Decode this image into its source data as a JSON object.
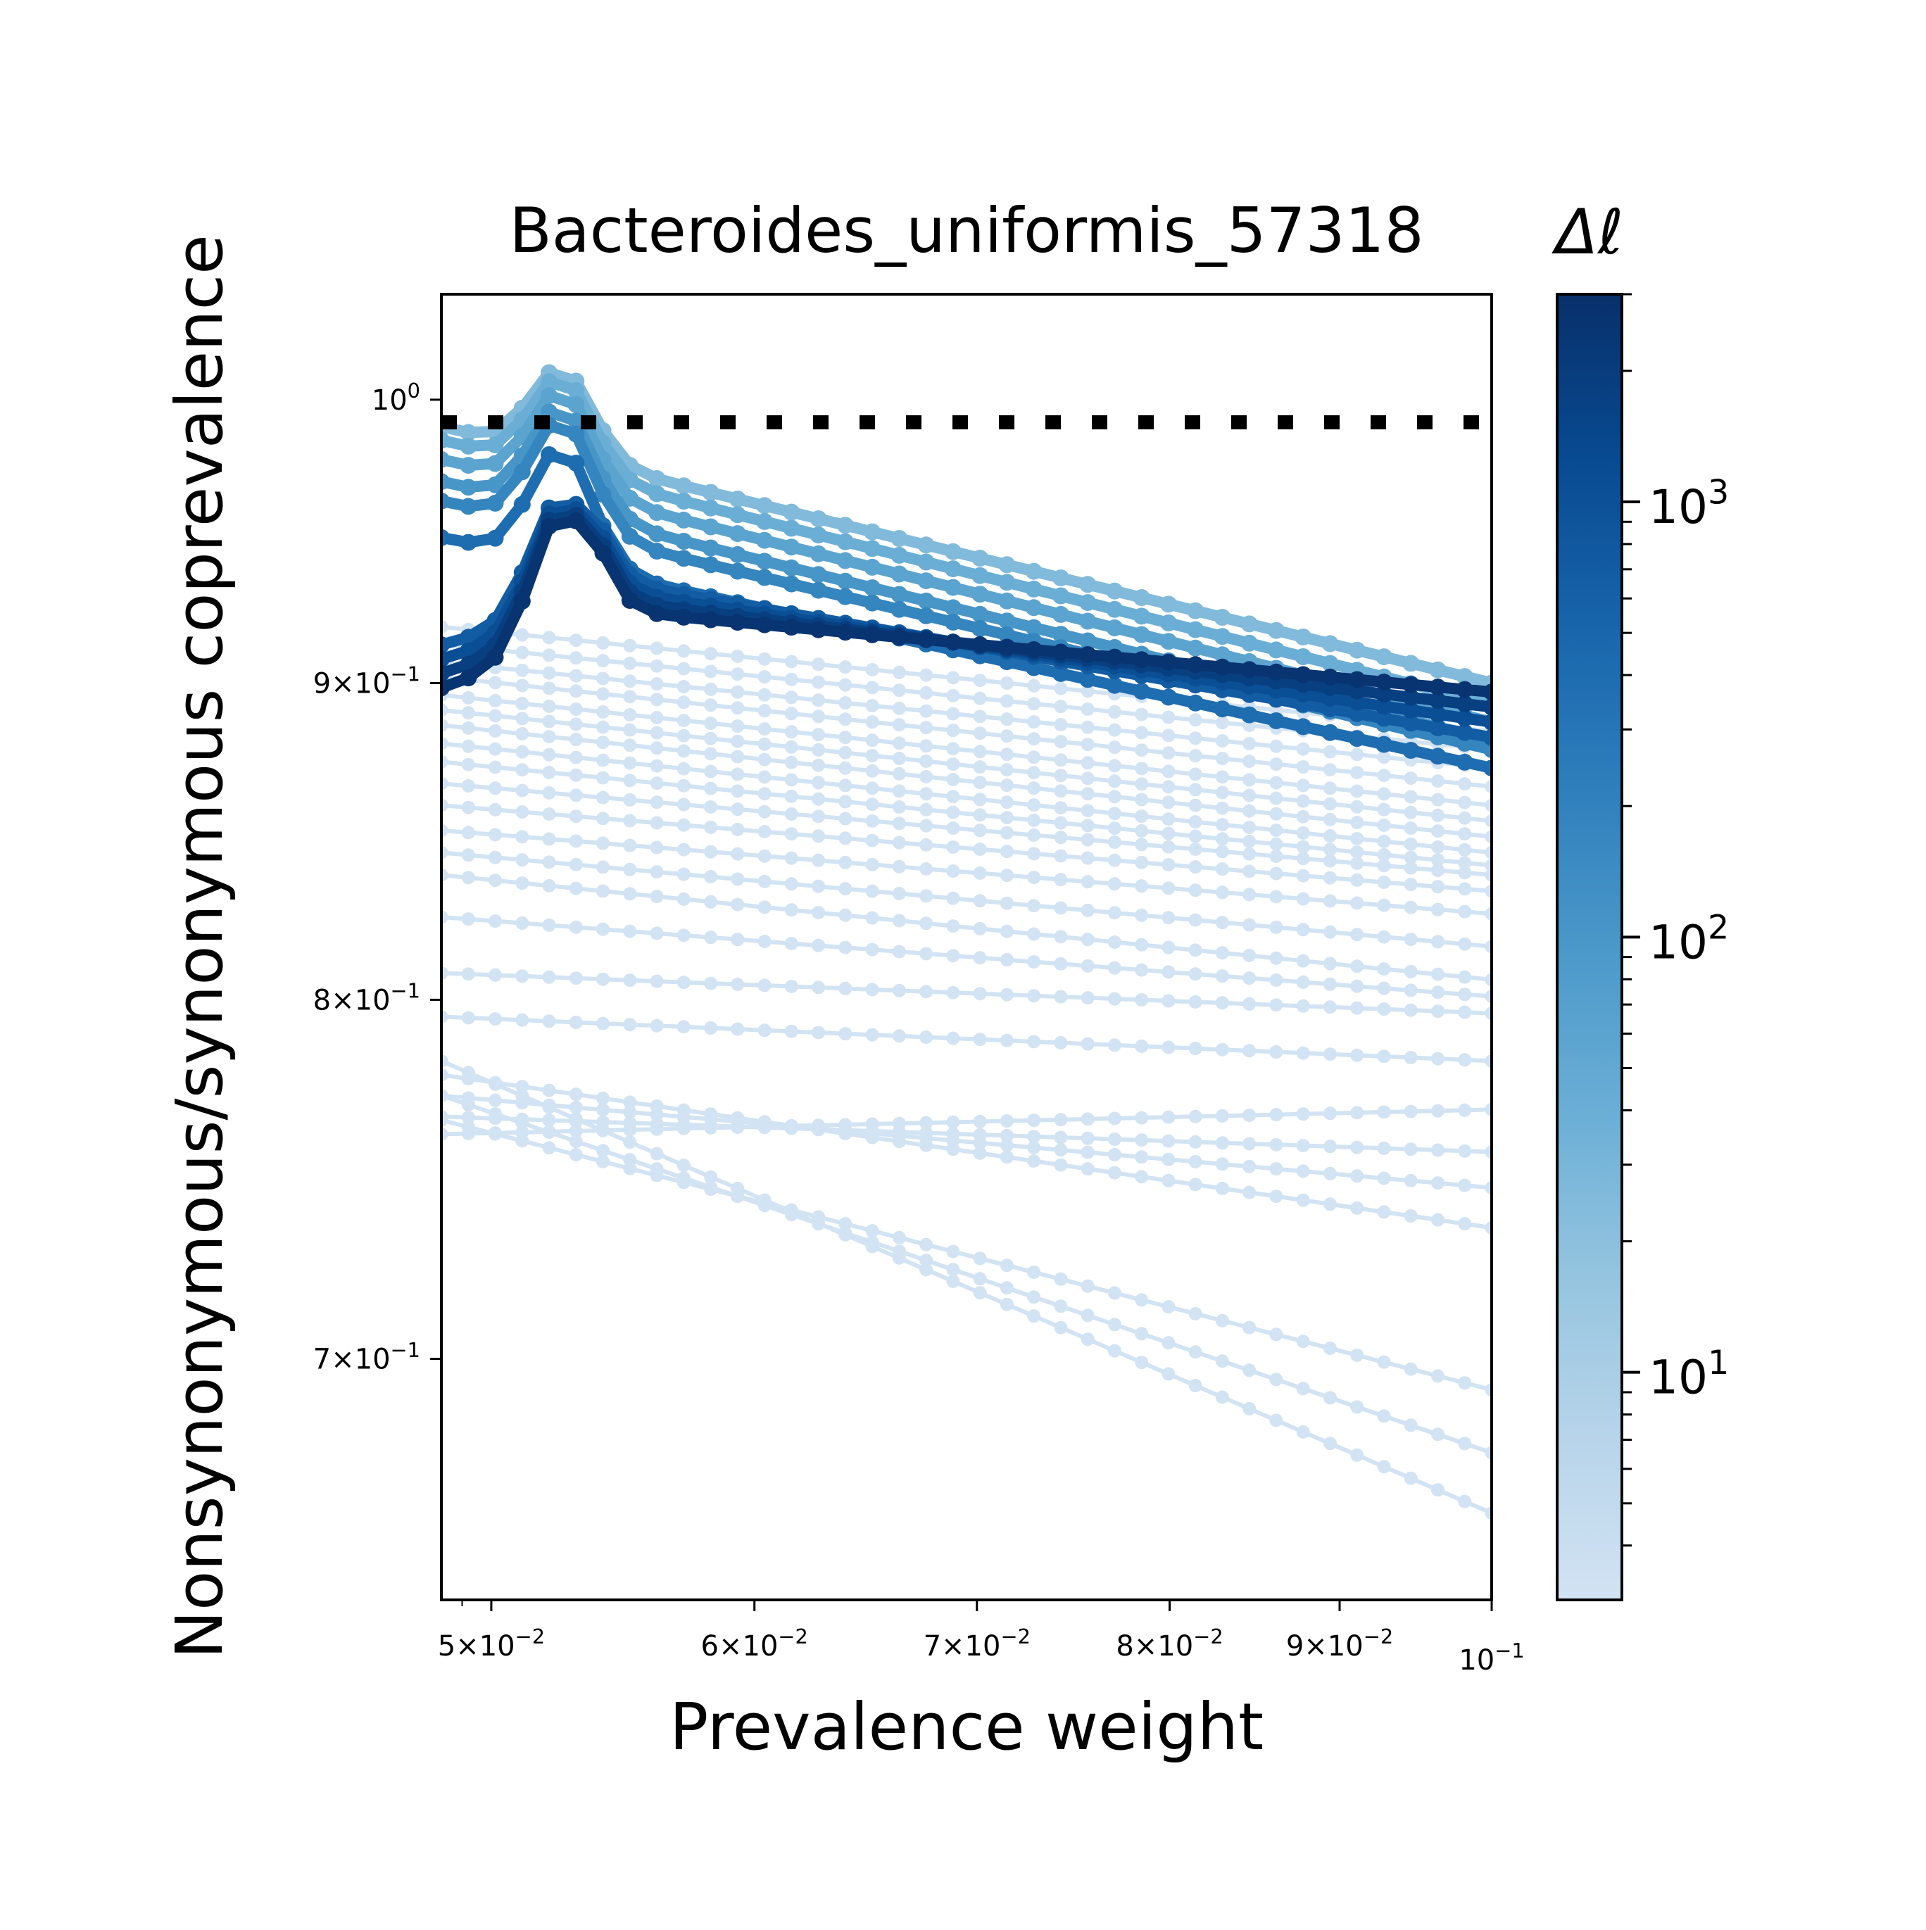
{
  "chart_data": {
    "type": "line",
    "title": "Bacteroides_uniformis_57318",
    "xlabel": "Prevalence weight",
    "ylabel": "Nonsynonymous/synonymous coprevalence",
    "x_scale": "log",
    "y_scale": "log",
    "xlim": [
      0.0483,
      0.1
    ],
    "ylim": [
      0.64,
      1.04
    ],
    "grid": false,
    "legend": "none",
    "x_ticks": [
      {
        "value": 0.05,
        "base": "5",
        "exp": "−2"
      },
      {
        "value": 0.06,
        "base": "6",
        "exp": "−2"
      },
      {
        "value": 0.07,
        "base": "7",
        "exp": "−2"
      },
      {
        "value": 0.08,
        "base": "8",
        "exp": "−2"
      },
      {
        "value": 0.09,
        "base": "9",
        "exp": "−2"
      },
      {
        "value": 0.1,
        "base": "",
        "exp": "−1"
      }
    ],
    "y_ticks": [
      {
        "value": 1.0,
        "base": "",
        "exp": "0"
      },
      {
        "value": 0.9,
        "base": "9",
        "exp": "−1"
      },
      {
        "value": 0.8,
        "base": "8",
        "exp": "−1"
      },
      {
        "value": 0.7,
        "base": "7",
        "exp": "−1"
      }
    ],
    "reference_line": {
      "y": 1.0,
      "style": "dotted",
      "color": "#000000"
    },
    "colorbar": {
      "label": "Δℓ",
      "scale": "log",
      "range": [
        3,
        3000
      ],
      "ticks": [
        {
          "value": 10,
          "exp": "1"
        },
        {
          "value": 100,
          "exp": "2"
        },
        {
          "value": 1000,
          "exp": "3"
        }
      ],
      "colors": [
        "#d2e3f3",
        "#b7d4ea",
        "#94c4df",
        "#6aaed6",
        "#4a98c9",
        "#2e7ebc",
        "#1764ab",
        "#084a91",
        "#08306b"
      ]
    },
    "series_spec": {
      "low_cluster": [
        {
          "dl": 3,
          "y_start": 0.782,
          "y_end": 0.661
        },
        {
          "dl": 3,
          "y_start": 0.772,
          "y_end": 0.676
        },
        {
          "dl": 3,
          "y_start": 0.765,
          "y_end": 0.692
        },
        {
          "dl": 3,
          "y_start": 0.778,
          "y_end": 0.735
        },
        {
          "dl": 3,
          "y_start": 0.772,
          "y_end": 0.746
        },
        {
          "dl": 3,
          "y_start": 0.766,
          "y_end": 0.756
        },
        {
          "dl": 3,
          "y_start": 0.761,
          "y_end": 0.768
        },
        {
          "dl": 3,
          "y_start": 0.795,
          "y_end": 0.782
        },
        {
          "dl": 3,
          "y_start": 0.808,
          "y_end": 0.796
        },
        {
          "dl": 3,
          "y_start": 0.825,
          "y_end": 0.801
        },
        {
          "dl": 3,
          "y_start": 0.838,
          "y_end": 0.806
        },
        {
          "dl": 3,
          "y_start": 0.845,
          "y_end": 0.816
        },
        {
          "dl": 3,
          "y_start": 0.852,
          "y_end": 0.826
        },
        {
          "dl": 3,
          "y_start": 0.86,
          "y_end": 0.833
        },
        {
          "dl": 3,
          "y_start": 0.867,
          "y_end": 0.838
        },
        {
          "dl": 3,
          "y_start": 0.874,
          "y_end": 0.841
        },
        {
          "dl": 3,
          "y_start": 0.88,
          "y_end": 0.845
        },
        {
          "dl": 3,
          "y_start": 0.886,
          "y_end": 0.85
        },
        {
          "dl": 3,
          "y_start": 0.891,
          "y_end": 0.855
        },
        {
          "dl": 3,
          "y_start": 0.896,
          "y_end": 0.86
        },
        {
          "dl": 3,
          "y_start": 0.902,
          "y_end": 0.866
        },
        {
          "dl": 3,
          "y_start": 0.907,
          "y_end": 0.872
        },
        {
          "dl": 3,
          "y_start": 0.913,
          "y_end": 0.878
        },
        {
          "dl": 3,
          "y_start": 0.919,
          "y_end": 0.884
        }
      ],
      "top_cluster": [
        {
          "dl": 25,
          "y_start": 0.99,
          "y_end": 0.9
        },
        {
          "dl": 40,
          "y_start": 0.985,
          "y_end": 0.893
        },
        {
          "dl": 60,
          "y_start": 0.978,
          "y_end": 0.887
        },
        {
          "dl": 100,
          "y_start": 0.97,
          "y_end": 0.881
        },
        {
          "dl": 180,
          "y_start": 0.963,
          "y_end": 0.878
        },
        {
          "dl": 400,
          "y_start": 0.95,
          "y_end": 0.872
        },
        {
          "dl": 700,
          "y_start": 0.945,
          "y_end": 0.882
        },
        {
          "dl": 1100,
          "y_start": 0.94,
          "y_end": 0.887
        },
        {
          "dl": 1800,
          "y_start": 0.935,
          "y_end": 0.892
        },
        {
          "dl": 2600,
          "y_start": 0.93,
          "y_end": 0.897
        }
      ],
      "peak": {
        "x": 0.0525,
        "y": 1.022
      },
      "points_per_series": 40
    }
  }
}
